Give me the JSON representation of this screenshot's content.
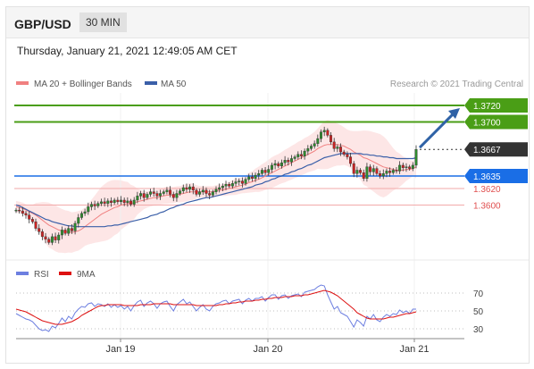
{
  "header": {
    "symbol": "GBP/USD",
    "timeframe": "30 MIN"
  },
  "timestamp": "Thursday, January 21, 2021 12:49:05 AM CET",
  "legend": {
    "ma20_bb": "MA 20 + Bollinger Bands",
    "ma50": "MA 50",
    "credit": "Research © 2021 Trading Central",
    "rsi": "RSI",
    "ma9": "9MA"
  },
  "colors": {
    "resistance": "#4a9e16",
    "current": "#333333",
    "pivot": "#1a6ee6",
    "support": "#e05050",
    "ma50": "#3a5fa8",
    "ma20": "#f08080",
    "bands_fill": "#fde2e2",
    "rsi": "#6d7fe0",
    "rsi_ma": "#dd1111",
    "arrow": "#2f62a6",
    "candle_up": "#2e8b2e",
    "candle_down": "#cc2222"
  },
  "chart_data": [
    {
      "type": "candlestick",
      "title": "GBP/USD 30 MIN",
      "x_ticks": [
        "Jan 19",
        "Jan 20",
        "Jan 21"
      ],
      "ylim": [
        1.3535,
        1.3735
      ],
      "levels": [
        {
          "value": 1.372,
          "label": "1.3720",
          "kind": "resistance"
        },
        {
          "value": 1.37,
          "label": "1.3700",
          "kind": "resistance"
        },
        {
          "value": 1.3667,
          "label": "1.3667",
          "kind": "current"
        },
        {
          "value": 1.3635,
          "label": "1.3635",
          "kind": "pivot"
        },
        {
          "value": 1.362,
          "label": "1.3620",
          "kind": "support"
        },
        {
          "value": 1.36,
          "label": "1.3600",
          "kind": "support"
        }
      ],
      "close": [
        1.3594,
        1.3593,
        1.359,
        1.3588,
        1.3583,
        1.358,
        1.3572,
        1.3568,
        1.3562,
        1.3559,
        1.3555,
        1.3562,
        1.3558,
        1.3564,
        1.357,
        1.3566,
        1.3572,
        1.3569,
        1.3578,
        1.3585,
        1.359,
        1.3592,
        1.3598,
        1.3601,
        1.3599,
        1.3602,
        1.3604,
        1.3602,
        1.3605,
        1.3603,
        1.3606,
        1.3604,
        1.3606,
        1.3603,
        1.3605,
        1.3601,
        1.3606,
        1.3611,
        1.3614,
        1.3609,
        1.3613,
        1.3616,
        1.3614,
        1.3611,
        1.3614,
        1.3616,
        1.3618,
        1.3613,
        1.3609,
        1.3614,
        1.3617,
        1.3621,
        1.3619,
        1.3622,
        1.3618,
        1.3613,
        1.3616,
        1.3618,
        1.3614,
        1.3612,
        1.3616,
        1.3619,
        1.3621,
        1.3623,
        1.3625,
        1.3623,
        1.3626,
        1.3628,
        1.3629,
        1.3626,
        1.3631,
        1.3634,
        1.3632,
        1.3636,
        1.3638,
        1.3642,
        1.3639,
        1.3643,
        1.3648,
        1.365,
        1.3647,
        1.3651,
        1.3654,
        1.3652,
        1.3656,
        1.3658,
        1.3661,
        1.3659,
        1.3665,
        1.3668,
        1.3671,
        1.3674,
        1.368,
        1.3688,
        1.369,
        1.3684,
        1.3676,
        1.3668,
        1.367,
        1.3664,
        1.3661,
        1.3658,
        1.365,
        1.3638,
        1.3642,
        1.3639,
        1.3632,
        1.3646,
        1.364,
        1.3644,
        1.3638,
        1.3635,
        1.3638,
        1.3641,
        1.3639,
        1.3642,
        1.3641,
        1.3648,
        1.3645,
        1.3646,
        1.3644,
        1.3648,
        1.3667
      ],
      "ma20": [
        1.3598,
        1.3597,
        1.3596,
        1.3594,
        1.3592,
        1.359,
        1.3588,
        1.3585,
        1.3582,
        1.3579,
        1.3576,
        1.3574,
        1.3572,
        1.357,
        1.3569,
        1.3568,
        1.3568,
        1.3567,
        1.3568,
        1.3569,
        1.3571,
        1.3574,
        1.3577,
        1.358,
        1.3583,
        1.3586,
        1.3589,
        1.3591,
        1.3593,
        1.3595,
        1.3597,
        1.3598,
        1.36,
        1.3601,
        1.3602,
        1.3602,
        1.3603,
        1.3604,
        1.3605,
        1.3606,
        1.3607,
        1.3608,
        1.3609,
        1.3609,
        1.361,
        1.3611,
        1.3612,
        1.3612,
        1.3612,
        1.3613,
        1.3613,
        1.3614,
        1.3615,
        1.3616,
        1.3616,
        1.3616,
        1.3616,
        1.3616,
        1.3616,
        1.3616,
        1.3616,
        1.3617,
        1.3618,
        1.3618,
        1.3619,
        1.362,
        1.3621,
        1.3622,
        1.3623,
        1.3624,
        1.3625,
        1.3627,
        1.3628,
        1.363,
        1.3631,
        1.3633,
        1.3635,
        1.3637,
        1.3639,
        1.3641,
        1.3643,
        1.3645,
        1.3647,
        1.3649,
        1.3651,
        1.3653,
        1.3655,
        1.3657,
        1.3659,
        1.3661,
        1.3663,
        1.3665,
        1.3668,
        1.367,
        1.3672,
        1.3673,
        1.3673,
        1.3673,
        1.3673,
        1.3672,
        1.3671,
        1.3669,
        1.3667,
        1.3664,
        1.3662,
        1.366,
        1.3657,
        1.3656,
        1.3654,
        1.3652,
        1.365,
        1.3648,
        1.3646,
        1.3645,
        1.3644,
        1.3643,
        1.3642,
        1.3642,
        1.3642,
        1.3643,
        1.3643,
        1.3644,
        1.3646
      ],
      "ma50": [
        1.36,
        1.3599,
        1.3597,
        1.3595,
        1.3593,
        1.3591,
        1.3589,
        1.3587,
        1.3585,
        1.3583,
        1.3582,
        1.358,
        1.3579,
        1.3578,
        1.3577,
        1.3576,
        1.3575,
        1.3575,
        1.3574,
        1.3574,
        1.3574,
        1.3574,
        1.3574,
        1.3574,
        1.3574,
        1.3574,
        1.3574,
        1.3574,
        1.3575,
        1.3575,
        1.3576,
        1.3576,
        1.3577,
        1.3578,
        1.3579,
        1.358,
        1.3581,
        1.3582,
        1.3583,
        1.3584,
        1.3585,
        1.3587,
        1.3588,
        1.3589,
        1.3591,
        1.3592,
        1.3594,
        1.3596,
        1.3597,
        1.3599,
        1.36,
        1.3601,
        1.3603,
        1.3604,
        1.3605,
        1.3606,
        1.3607,
        1.3608,
        1.3609,
        1.3609,
        1.361,
        1.3611,
        1.3612,
        1.3613,
        1.3614,
        1.3615,
        1.3616,
        1.3617,
        1.3618,
        1.3619,
        1.362,
        1.3621,
        1.3622,
        1.3624,
        1.3625,
        1.3626,
        1.3628,
        1.3629,
        1.3631,
        1.3632,
        1.3634,
        1.3635,
        1.3637,
        1.3638,
        1.364,
        1.3641,
        1.3643,
        1.3644,
        1.3646,
        1.3648,
        1.3649,
        1.3651,
        1.3653,
        1.3655,
        1.3657,
        1.3658,
        1.3659,
        1.366,
        1.3661,
        1.3662,
        1.3662,
        1.3662,
        1.3662,
        1.3662,
        1.3662,
        1.3662,
        1.3661,
        1.3661,
        1.366,
        1.366,
        1.3659,
        1.3659,
        1.3658,
        1.3658,
        1.3657,
        1.3657,
        1.3656,
        1.3656,
        1.3656,
        1.3656,
        1.3656,
        1.3656,
        1.3657
      ]
    },
    {
      "type": "line",
      "title": "RSI",
      "ylim": [
        20,
        80
      ],
      "y_ticks": [
        70,
        50,
        30
      ],
      "series": [
        {
          "name": "RSI",
          "values": [
            47,
            45,
            43,
            41,
            40,
            38,
            34,
            30,
            28,
            29,
            27,
            33,
            31,
            36,
            42,
            38,
            44,
            41,
            48,
            52,
            55,
            54,
            58,
            59,
            55,
            58,
            57,
            55,
            58,
            54,
            57,
            54,
            56,
            52,
            55,
            50,
            56,
            60,
            62,
            55,
            59,
            61,
            58,
            53,
            58,
            60,
            61,
            55,
            50,
            57,
            60,
            63,
            58,
            60,
            55,
            50,
            54,
            57,
            52,
            50,
            55,
            58,
            59,
            61,
            62,
            58,
            61,
            62,
            63,
            58,
            62,
            64,
            61,
            64,
            64,
            66,
            61,
            65,
            68,
            68,
            63,
            67,
            68,
            64,
            67,
            68,
            69,
            66,
            71,
            72,
            73,
            74,
            77,
            79,
            78,
            68,
            60,
            52,
            55,
            48,
            46,
            44,
            38,
            32,
            40,
            37,
            33,
            44,
            41,
            46,
            40,
            38,
            43,
            46,
            44,
            47,
            46,
            51,
            48,
            50,
            47,
            52,
            52
          ]
        },
        {
          "name": "9MA",
          "values": [
            52,
            51,
            50,
            49,
            47,
            45,
            43,
            41,
            39,
            38,
            37,
            36,
            35,
            35,
            35,
            36,
            37,
            38,
            40,
            42,
            45,
            47,
            49,
            51,
            53,
            55,
            56,
            56,
            57,
            57,
            57,
            57,
            57,
            56,
            56,
            56,
            56,
            56,
            57,
            57,
            57,
            57,
            58,
            58,
            58,
            58,
            58,
            58,
            57,
            57,
            57,
            57,
            57,
            57,
            57,
            56,
            56,
            56,
            56,
            56,
            56,
            56,
            57,
            57,
            58,
            58,
            59,
            59,
            60,
            60,
            61,
            61,
            61,
            62,
            62,
            63,
            63,
            64,
            64,
            65,
            65,
            65,
            66,
            66,
            66,
            67,
            67,
            67,
            68,
            68,
            69,
            70,
            71,
            72,
            73,
            72,
            71,
            69,
            67,
            64,
            61,
            58,
            55,
            52,
            48,
            46,
            44,
            42,
            41,
            41,
            41,
            41,
            41,
            42,
            43,
            43,
            44,
            45,
            46,
            47,
            47,
            48,
            49
          ]
        }
      ]
    }
  ]
}
